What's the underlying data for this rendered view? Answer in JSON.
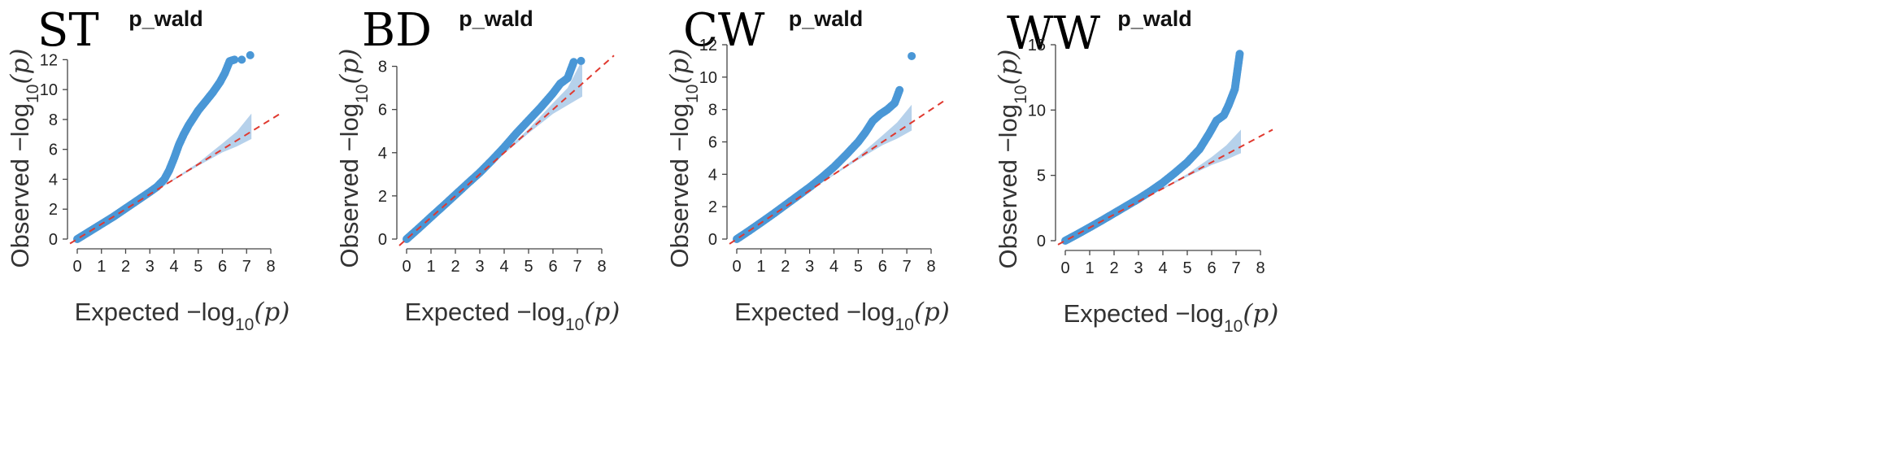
{
  "chart_data": [
    {
      "panel_label": "ST",
      "type": "scatter",
      "title": "p_wald",
      "xlabel_prefix": "Expected",
      "ylabel_prefix": "Observed",
      "log_label": "−log",
      "log_base": "10",
      "log_arg": "(p)",
      "xlim": [
        0,
        8
      ],
      "ylim": [
        0,
        13
      ],
      "x_ticks": [
        0,
        1,
        2,
        3,
        4,
        5,
        6,
        7,
        8
      ],
      "y_ticks": [
        0,
        2,
        4,
        6,
        8,
        10,
        12
      ],
      "reference_line": "y = x",
      "confidence_band": [
        [
          3.0,
          3.0,
          3.0
        ],
        [
          4.0,
          3.95,
          4.05
        ],
        [
          5.0,
          4.9,
          5.1
        ],
        [
          6.0,
          5.8,
          6.4
        ],
        [
          6.6,
          6.2,
          7.2
        ],
        [
          7.2,
          6.7,
          8.4
        ]
      ],
      "series": [
        {
          "points": [
            [
              0,
              0
            ],
            [
              0.5,
              0.5
            ],
            [
              1,
              1.0
            ],
            [
              1.5,
              1.5
            ],
            [
              2,
              2.05
            ],
            [
              2.5,
              2.6
            ],
            [
              3,
              3.15
            ],
            [
              3.3,
              3.5
            ],
            [
              3.6,
              4.0
            ],
            [
              3.8,
              4.6
            ],
            [
              4,
              5.4
            ],
            [
              4.2,
              6.3
            ],
            [
              4.4,
              7.0
            ],
            [
              4.6,
              7.6
            ],
            [
              4.8,
              8.1
            ],
            [
              5,
              8.6
            ],
            [
              5.3,
              9.2
            ],
            [
              5.6,
              9.8
            ],
            [
              5.9,
              10.5
            ],
            [
              6.1,
              11.1
            ],
            [
              6.3,
              11.9
            ],
            [
              6.5,
              12.0
            ],
            [
              6.8,
              12.0
            ],
            [
              7.15,
              12.3
            ]
          ]
        }
      ]
    },
    {
      "panel_label": "BD",
      "type": "scatter",
      "title": "p_wald",
      "xlabel_prefix": "Expected",
      "ylabel_prefix": "Observed",
      "log_label": "−log",
      "log_base": "10",
      "log_arg": "(p)",
      "xlim": [
        0,
        8
      ],
      "ylim": [
        0,
        9
      ],
      "x_ticks": [
        0,
        1,
        2,
        3,
        4,
        5,
        6,
        7,
        8
      ],
      "y_ticks": [
        0,
        2,
        4,
        6,
        8
      ],
      "reference_line": "y = x",
      "confidence_band": [
        [
          3.0,
          3.0,
          3.0
        ],
        [
          4.0,
          3.95,
          4.05
        ],
        [
          5.0,
          4.9,
          5.1
        ],
        [
          6.0,
          5.8,
          6.3
        ],
        [
          6.6,
          6.2,
          7.0
        ],
        [
          7.2,
          6.6,
          8.3
        ]
      ],
      "series": [
        {
          "points": [
            [
              0,
              0
            ],
            [
              0.5,
              0.5
            ],
            [
              1,
              1.02
            ],
            [
              1.5,
              1.53
            ],
            [
              2,
              2.05
            ],
            [
              2.5,
              2.57
            ],
            [
              3,
              3.08
            ],
            [
              3.5,
              3.65
            ],
            [
              4,
              4.25
            ],
            [
              4.5,
              4.9
            ],
            [
              5,
              5.5
            ],
            [
              5.5,
              6.1
            ],
            [
              6,
              6.75
            ],
            [
              6.3,
              7.2
            ],
            [
              6.6,
              7.45
            ],
            [
              6.85,
              8.2
            ],
            [
              7.15,
              8.25
            ]
          ]
        }
      ]
    },
    {
      "panel_label": "CW",
      "type": "scatter",
      "title": "p_wald",
      "xlabel_prefix": "Expected",
      "ylabel_prefix": "Observed",
      "log_label": "−log",
      "log_base": "10",
      "log_arg": "(p)",
      "xlim": [
        0,
        8
      ],
      "ylim": [
        0,
        12
      ],
      "x_ticks": [
        0,
        1,
        2,
        3,
        4,
        5,
        6,
        7,
        8
      ],
      "y_ticks": [
        0,
        2,
        4,
        6,
        8,
        10,
        12
      ],
      "reference_line": "y = x",
      "confidence_band": [
        [
          3.0,
          3.0,
          3.0
        ],
        [
          4.0,
          3.95,
          4.05
        ],
        [
          5.0,
          4.9,
          5.1
        ],
        [
          6.0,
          5.8,
          6.4
        ],
        [
          6.6,
          6.2,
          7.2
        ],
        [
          7.2,
          6.7,
          8.3
        ]
      ],
      "series": [
        {
          "points": [
            [
              0,
              0
            ],
            [
              0.5,
              0.5
            ],
            [
              1,
              1.02
            ],
            [
              1.5,
              1.55
            ],
            [
              2,
              2.1
            ],
            [
              2.5,
              2.65
            ],
            [
              3,
              3.2
            ],
            [
              3.5,
              3.8
            ],
            [
              4,
              4.45
            ],
            [
              4.5,
              5.2
            ],
            [
              5,
              6.0
            ],
            [
              5.3,
              6.6
            ],
            [
              5.6,
              7.3
            ],
            [
              5.9,
              7.7
            ],
            [
              6.2,
              8.0
            ],
            [
              6.5,
              8.4
            ],
            [
              6.7,
              9.2
            ],
            [
              7.2,
              11.3
            ]
          ]
        }
      ]
    },
    {
      "panel_label": "WW",
      "type": "scatter",
      "title": "p_wald",
      "xlabel_prefix": "Expected",
      "ylabel_prefix": "Observed",
      "log_label": "−log",
      "log_base": "10",
      "log_arg": "(p)",
      "xlim": [
        0,
        8
      ],
      "ylim": [
        0,
        15
      ],
      "x_ticks": [
        0,
        1,
        2,
        3,
        4,
        5,
        6,
        7,
        8
      ],
      "y_ticks": [
        0,
        5,
        10,
        15
      ],
      "reference_line": "y = x",
      "confidence_band": [
        [
          3.0,
          3.0,
          3.0
        ],
        [
          4.0,
          3.95,
          4.05
        ],
        [
          5.0,
          4.9,
          5.1
        ],
        [
          6.0,
          5.8,
          6.4
        ],
        [
          6.6,
          6.2,
          7.3
        ],
        [
          7.2,
          6.7,
          8.5
        ]
      ],
      "series": [
        {
          "points": [
            [
              0,
              0
            ],
            [
              0.5,
              0.5
            ],
            [
              1,
              1.02
            ],
            [
              1.5,
              1.55
            ],
            [
              2,
              2.1
            ],
            [
              2.5,
              2.65
            ],
            [
              3,
              3.2
            ],
            [
              3.5,
              3.8
            ],
            [
              4,
              4.45
            ],
            [
              4.5,
              5.2
            ],
            [
              5,
              6.0
            ],
            [
              5.5,
              7.0
            ],
            [
              5.9,
              8.2
            ],
            [
              6.2,
              9.2
            ],
            [
              6.5,
              9.6
            ],
            [
              6.7,
              10.4
            ],
            [
              6.95,
              11.6
            ],
            [
              7.15,
              14.3
            ]
          ]
        }
      ]
    }
  ]
}
